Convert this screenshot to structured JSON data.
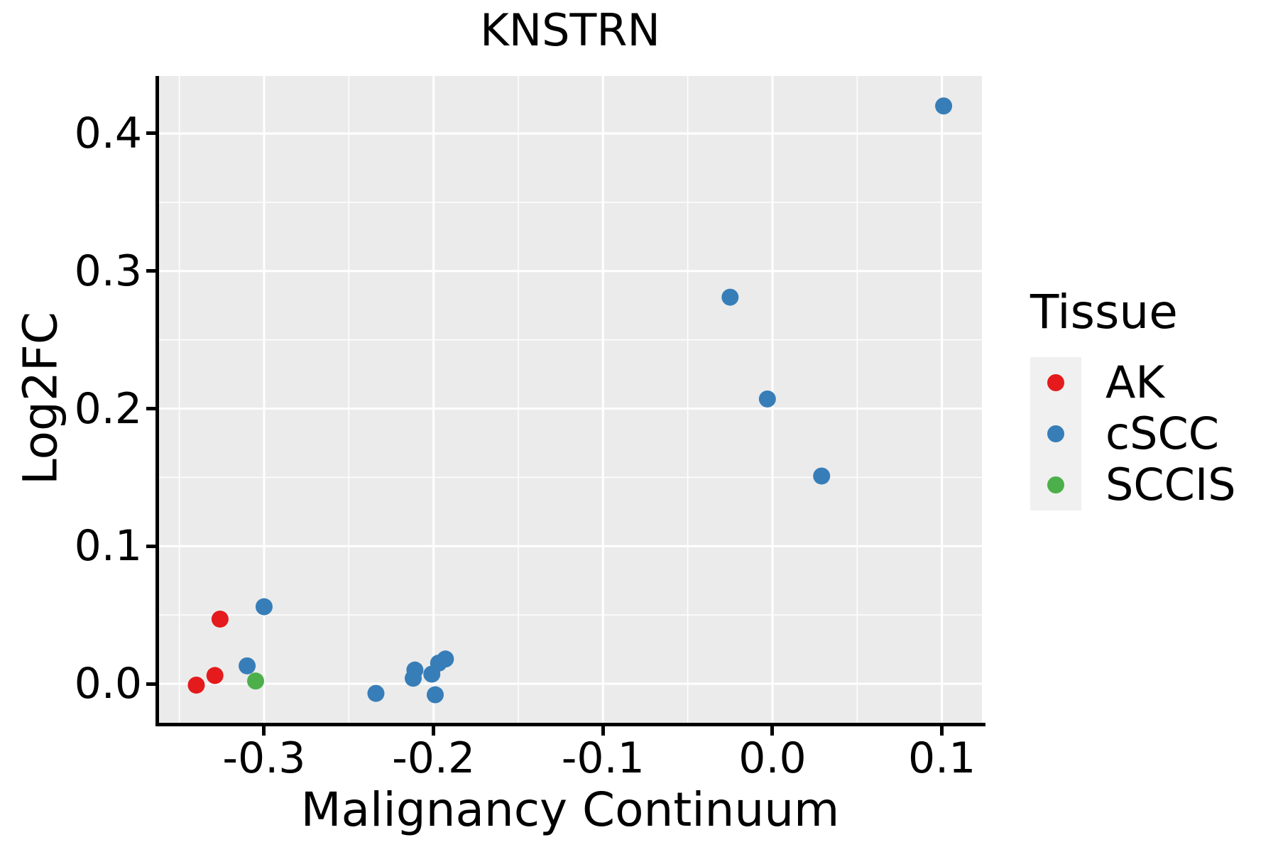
{
  "chart_data": {
    "type": "scatter",
    "title": "KNSTRN",
    "xlabel": "Malignancy Continuum",
    "ylabel": "Log2FC",
    "legend_title": "Tissue",
    "legend_position": "right",
    "xlim": [
      -0.3624,
      0.1236
    ],
    "ylim": [
      -0.0294,
      0.4418
    ],
    "x_ticks": {
      "values": [
        -0.3,
        -0.2,
        -0.1,
        0.0,
        0.1
      ],
      "labels": [
        "-0.3",
        "-0.2",
        "-0.1",
        "0.0",
        "0.1"
      ]
    },
    "y_ticks": {
      "values": [
        0.0,
        0.1,
        0.2,
        0.3,
        0.4
      ],
      "labels": [
        "0.0",
        "0.1",
        "0.2",
        "0.3",
        "0.4"
      ]
    },
    "minor_tick_step": 0.05,
    "grid": {
      "on": true,
      "major_color": "#ffffff",
      "minor_color": "#ffffff",
      "panel_background": "#ebebeb"
    },
    "point_radius_px": 12,
    "series": [
      {
        "name": "AK",
        "color": "#e41a1c",
        "points": [
          [
            -0.34,
            -0.001
          ],
          [
            -0.329,
            0.006
          ],
          [
            -0.326,
            0.047
          ]
        ]
      },
      {
        "name": "cSCC",
        "color": "#377eb8",
        "points": [
          [
            -0.31,
            0.013
          ],
          [
            -0.3,
            0.056
          ],
          [
            -0.234,
            -0.007
          ],
          [
            -0.212,
            0.004
          ],
          [
            -0.211,
            0.01
          ],
          [
            -0.201,
            0.007
          ],
          [
            -0.199,
            -0.008
          ],
          [
            -0.197,
            0.015
          ],
          [
            -0.193,
            0.018
          ],
          [
            -0.025,
            0.281
          ],
          [
            -0.003,
            0.207
          ],
          [
            0.029,
            0.151
          ],
          [
            0.101,
            0.42
          ]
        ]
      },
      {
        "name": "SCCIS",
        "color": "#4daf4a",
        "points": [
          [
            -0.305,
            0.002
          ]
        ]
      }
    ]
  }
}
